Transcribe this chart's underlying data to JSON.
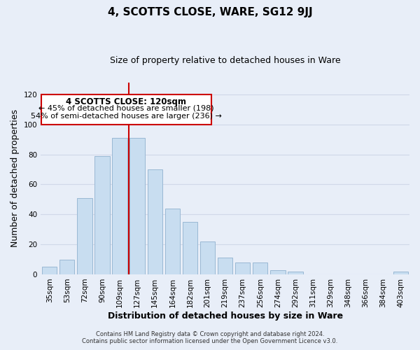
{
  "title": "4, SCOTTS CLOSE, WARE, SG12 9JJ",
  "subtitle": "Size of property relative to detached houses in Ware",
  "xlabel": "Distribution of detached houses by size in Ware",
  "ylabel": "Number of detached properties",
  "bar_labels": [
    "35sqm",
    "53sqm",
    "72sqm",
    "90sqm",
    "109sqm",
    "127sqm",
    "145sqm",
    "164sqm",
    "182sqm",
    "201sqm",
    "219sqm",
    "237sqm",
    "256sqm",
    "274sqm",
    "292sqm",
    "311sqm",
    "329sqm",
    "348sqm",
    "366sqm",
    "384sqm",
    "403sqm"
  ],
  "bar_heights": [
    5,
    10,
    51,
    79,
    91,
    91,
    70,
    44,
    35,
    22,
    11,
    8,
    8,
    3,
    2,
    0,
    0,
    0,
    0,
    0,
    2
  ],
  "bar_color": "#c8ddf0",
  "bar_edge_color": "#9ab8d4",
  "vline_x_index": 5,
  "vline_color": "#cc0000",
  "annotation_title": "4 SCOTTS CLOSE: 120sqm",
  "annotation_line1": "← 45% of detached houses are smaller (198)",
  "annotation_line2": "54% of semi-detached houses are larger (236) →",
  "annotation_box_color": "#ffffff",
  "annotation_box_edge": "#cc0000",
  "ylim": [
    0,
    120
  ],
  "yticks": [
    0,
    20,
    40,
    60,
    80,
    100,
    120
  ],
  "footer1": "Contains HM Land Registry data © Crown copyright and database right 2024.",
  "footer2": "Contains public sector information licensed under the Open Government Licence v3.0.",
  "background_color": "#e8eef8",
  "grid_color": "#d0d8e8",
  "title_fontsize": 11,
  "subtitle_fontsize": 9,
  "tick_fontsize": 7.5,
  "label_fontsize": 9,
  "footer_fontsize": 6.0
}
